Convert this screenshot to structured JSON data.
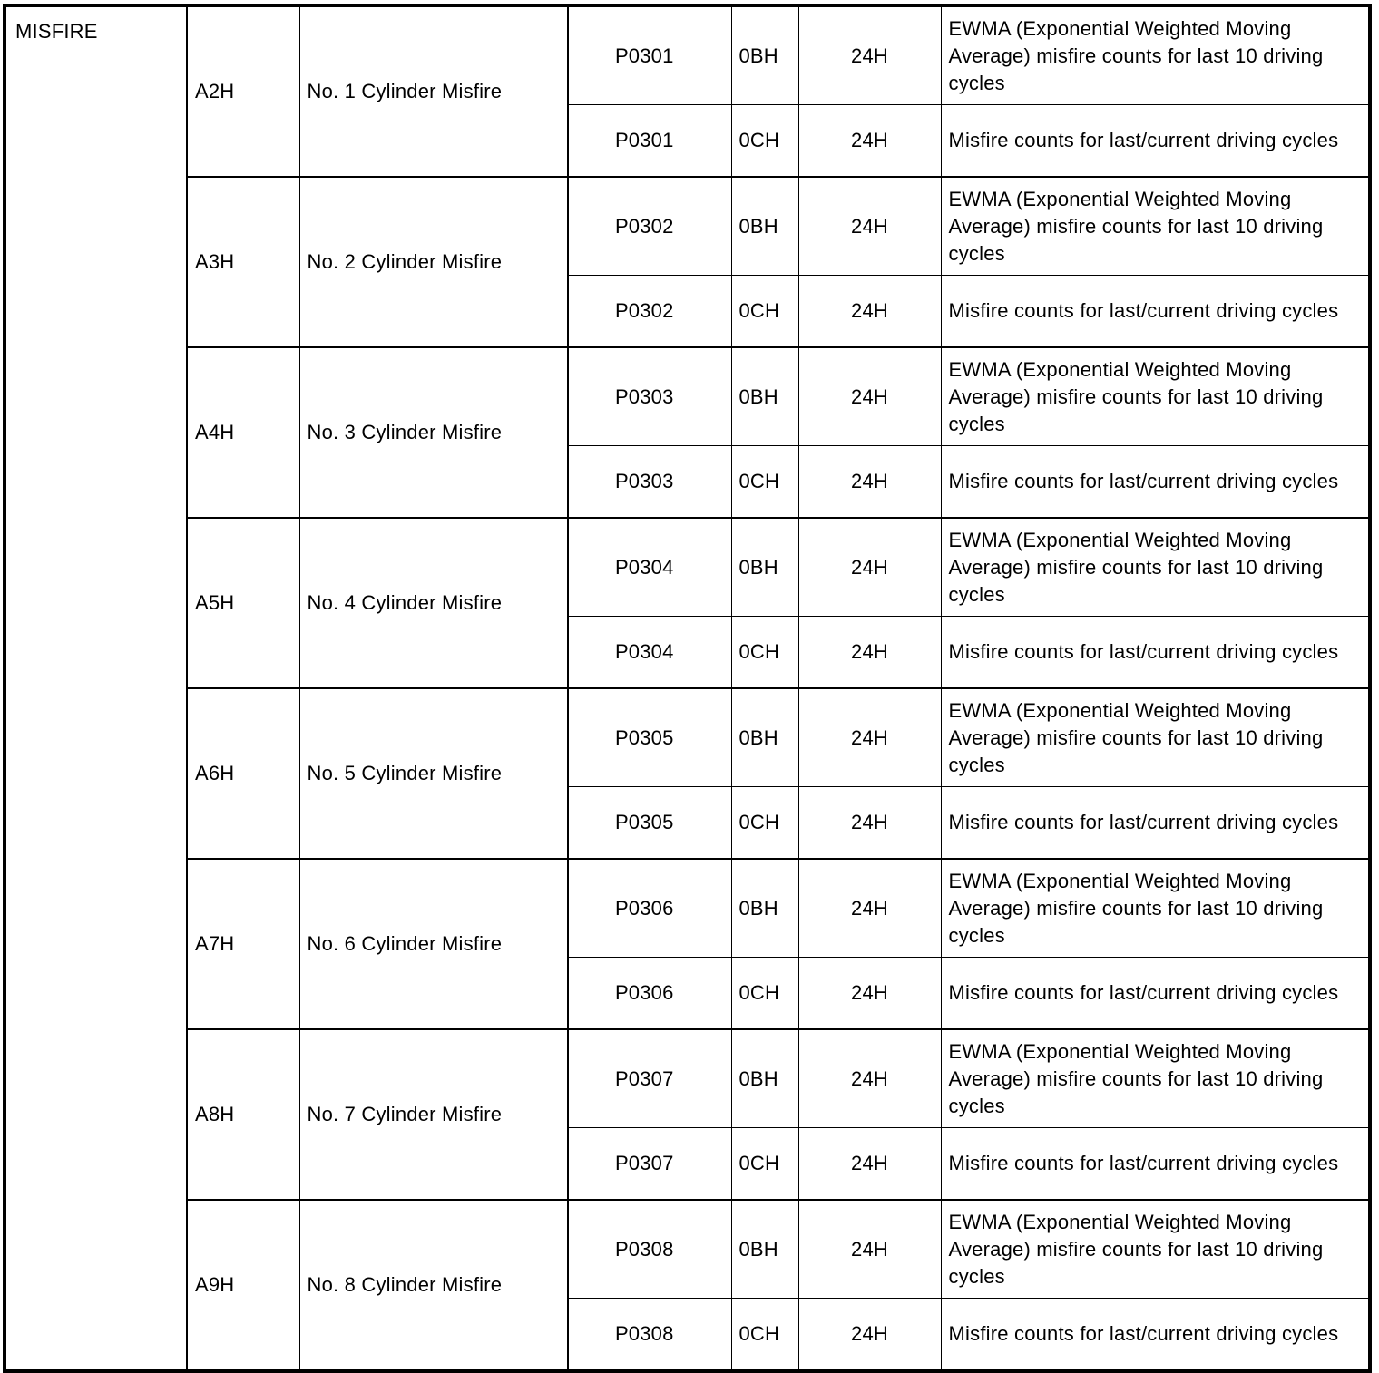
{
  "category": "MISFIRE",
  "groups": [
    {
      "tid": "A2H",
      "name": "No. 1 Cylinder Misfire",
      "dtc": "P0301"
    },
    {
      "tid": "A3H",
      "name": "No. 2 Cylinder Misfire",
      "dtc": "P0302"
    },
    {
      "tid": "A4H",
      "name": "No. 3 Cylinder Misfire",
      "dtc": "P0303"
    },
    {
      "tid": "A5H",
      "name": "No. 4 Cylinder Misfire",
      "dtc": "P0304"
    },
    {
      "tid": "A6H",
      "name": "No. 5 Cylinder Misfire",
      "dtc": "P0305"
    },
    {
      "tid": "A7H",
      "name": "No. 6 Cylinder Misfire",
      "dtc": "P0306"
    },
    {
      "tid": "A8H",
      "name": "No. 7 Cylinder Misfire",
      "dtc": "P0307"
    },
    {
      "tid": "A9H",
      "name": "No. 8 Cylinder Misfire",
      "dtc": "P0308"
    }
  ],
  "rows": [
    {
      "cid": "0BH",
      "unit": "24H",
      "desc": "EWMA (Exponential Weighted Moving Average) misfire counts for last 10 driving cycles"
    },
    {
      "cid": "0CH",
      "unit": "24H",
      "desc": "Misfire counts for last/current driving cycles"
    }
  ]
}
